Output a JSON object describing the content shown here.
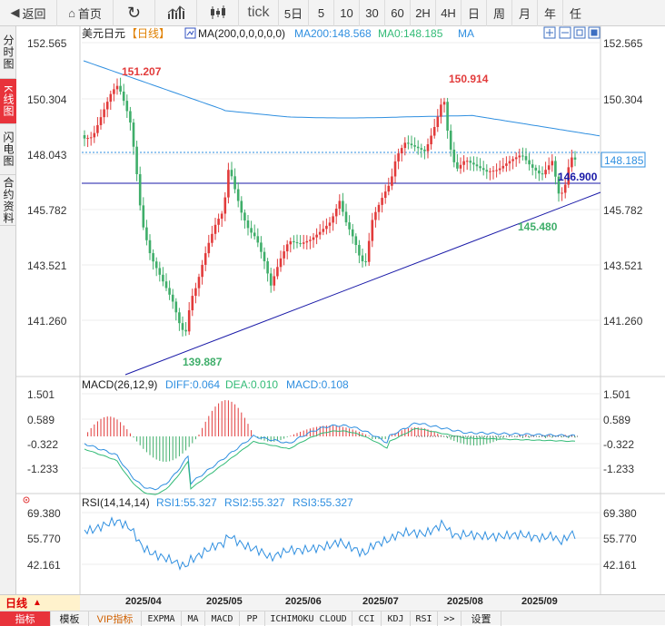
{
  "toolbar": {
    "back": "返回",
    "home": "首页",
    "tick": "tick",
    "periods": [
      "5日",
      "5",
      "10",
      "30",
      "60",
      "2H",
      "4H",
      "日",
      "周",
      "月",
      "年",
      "任"
    ],
    "selected_period": "日"
  },
  "side_tabs": [
    {
      "label": "分时图",
      "active": false
    },
    {
      "label": "K线图",
      "active": true
    },
    {
      "label": "闪电图",
      "active": false
    },
    {
      "label": "合约资料",
      "active": false
    }
  ],
  "main_panel": {
    "symbol": "美元日元",
    "period_tag": "【日线】",
    "ma_label": "MA(200,0,0,0,0,0)",
    "ma200_label": "MA200:148.568",
    "ma0_label": "MA0:148.185",
    "ma_extra": "MA",
    "y_labels": [
      "152.565",
      "150.304",
      "148.043",
      "145.782",
      "143.521",
      "141.260"
    ],
    "current_price": "148.185",
    "hline_price": "146.900",
    "annotations": {
      "high1": "151.207",
      "high2": "150.914",
      "low1": "139.887",
      "low2": "145.480"
    }
  },
  "macd_panel": {
    "title": "MACD(26,12,9)",
    "diff": "DIFF:0.064",
    "dea": "DEA:0.010",
    "macd": "MACD:0.108",
    "y_labels": [
      "1.501",
      "0.589",
      "-0.322",
      "-1.233"
    ]
  },
  "rsi_panel": {
    "title": "RSI(14,14,14)",
    "rsi1": "RSI1:55.327",
    "rsi2": "RSI2:55.327",
    "rsi3": "RSI3:55.327",
    "y_labels": [
      "69.380",
      "55.770",
      "42.161"
    ]
  },
  "x_axis": [
    "2025/04",
    "2025/05",
    "2025/06",
    "2025/07",
    "2025/08",
    "2025/09"
  ],
  "bottom": {
    "period_label": "日线",
    "period_arrow": "▲",
    "indicator_tabs": [
      "指标",
      "模板",
      "VIP指标",
      "EXPMA",
      "MA",
      "MACD",
      "PP",
      "ICHIMOKU CLOUD",
      "CCI",
      "KDJ",
      "RSI",
      ">>",
      "设置"
    ]
  },
  "colors": {
    "up": "#e23b3b",
    "down": "#3fae6a",
    "ma200": "#2196f3",
    "ma0": "#33bb77",
    "trendline": "#1a1aa8",
    "accent": "#e8333b"
  }
}
